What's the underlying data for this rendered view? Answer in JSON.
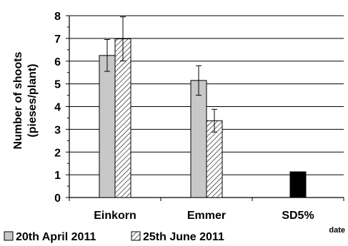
{
  "chart_data": {
    "type": "bar",
    "categories": [
      "Einkorn",
      "Emmer",
      "SD5%"
    ],
    "series": [
      {
        "name": "20th April 2011",
        "fill": "#c8c8c8",
        "pattern": "solid",
        "values": [
          6.25,
          5.15,
          null
        ],
        "errors": [
          0.7,
          0.65,
          null
        ]
      },
      {
        "name": "25th June 2011",
        "fill": "#ffffff",
        "pattern": "hatched",
        "values": [
          6.98,
          3.38,
          null
        ],
        "errors": [
          0.97,
          0.5,
          null
        ]
      }
    ],
    "lsd": {
      "category": "SD5%",
      "value": 1.13,
      "fill": "#000000"
    },
    "ylabel_line1": "Number of shoots",
    "ylabel_line2": "(pieses/plant)",
    "xlabel": "date",
    "ylim": [
      0,
      8
    ],
    "yticks": [
      "0",
      "1",
      "2",
      "3",
      "4",
      "5",
      "6",
      "7",
      "8"
    ],
    "grid": true,
    "legend_position": "bottom-left"
  }
}
